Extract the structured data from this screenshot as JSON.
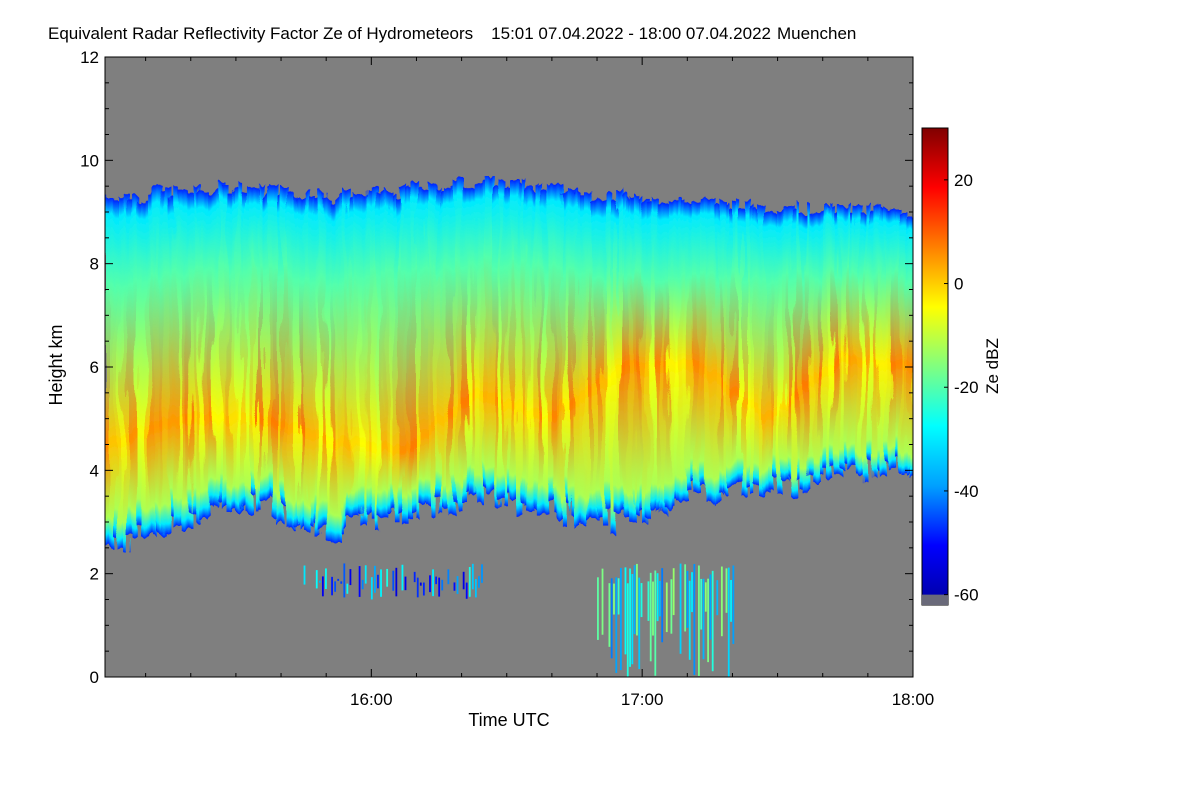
{
  "chart_data": {
    "type": "heatmap",
    "title": "Equivalent Radar Reflectivity Factor Ze of Hydrometeors",
    "time_range": "15:01 07.04.2022 - 18:00 07.04.2022",
    "location": "Muenchen",
    "xlabel": "Time UTC",
    "ylabel": "Height km",
    "colorbar_label": "Ze dBZ",
    "xlim": [
      "15:01",
      "18:00"
    ],
    "ylim": [
      0,
      12
    ],
    "x_ticks": [
      "16:00",
      "17:00",
      "18:00"
    ],
    "y_ticks": [
      0,
      2,
      4,
      6,
      8,
      10,
      12
    ],
    "colorbar_range": [
      -62,
      30
    ],
    "colorbar_ticks": [
      20,
      0,
      -20,
      -40,
      -60
    ],
    "background_color": "#7f7f7f",
    "colormap": [
      "#0000a0",
      "#0000ff",
      "#00a0ff",
      "#00ffff",
      "#80ff80",
      "#ffff00",
      "#ff8000",
      "#ff0000",
      "#800000"
    ],
    "layers": [
      {
        "name": "upper cloud layer",
        "time_start": "15:01",
        "time_end": "18:00",
        "top_km": [
          9.3,
          9.4,
          9.5,
          9.3,
          9.4,
          9.6,
          9.5,
          9.3,
          9.2,
          9.1,
          9.1,
          9.0
        ],
        "base_km": [
          2.5,
          3.0,
          3.4,
          2.8,
          3.1,
          3.5,
          3.2,
          3.0,
          3.6,
          3.6,
          4.0,
          4.0
        ],
        "core_height_km": [
          4.5,
          5.0,
          5.0,
          4.6,
          4.3,
          5.5,
          5.0,
          6.0,
          6.1,
          5.0,
          6.2,
          6.0
        ],
        "max_ze_dbz": 8
      },
      {
        "name": "low echo band 1",
        "time_start": "15:45",
        "time_end": "16:25",
        "base_km": 1.5,
        "top_km": 2.2,
        "max_ze_dbz": -25
      },
      {
        "name": "low echo band 2",
        "time_start": "16:50",
        "time_end": "17:20",
        "base_km": 0.0,
        "top_km": 2.2,
        "max_ze_dbz": -12
      }
    ]
  }
}
